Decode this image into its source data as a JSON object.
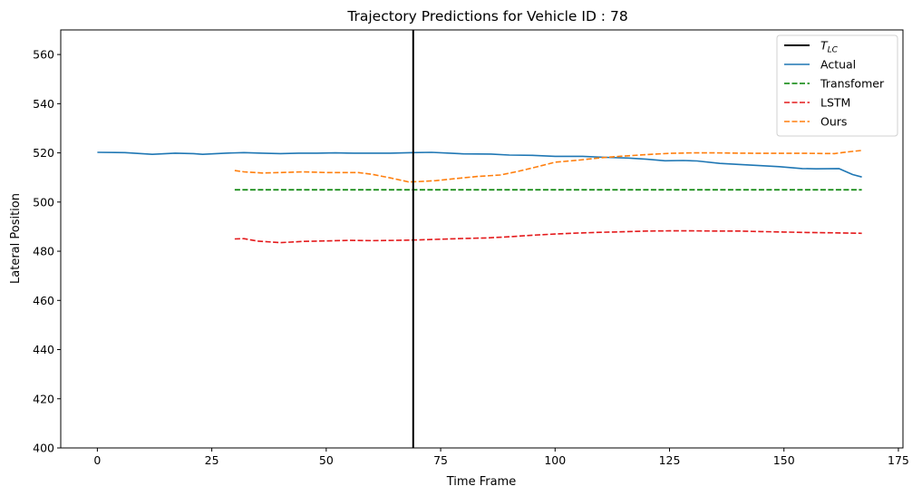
{
  "chart_data": {
    "type": "line",
    "title": "Trajectory Predictions for Vehicle ID : 78",
    "xlabel": "Time Frame",
    "ylabel": "Lateral Position",
    "xlim": [
      -8,
      176
    ],
    "ylim": [
      400,
      570
    ],
    "xticks": [
      0,
      25,
      50,
      75,
      100,
      125,
      150,
      175
    ],
    "yticks": [
      400,
      420,
      440,
      460,
      480,
      500,
      520,
      540,
      560
    ],
    "grid": false,
    "legend_position": "top-right",
    "vline": {
      "name": "T_LC",
      "x": 69,
      "color": "#000000"
    },
    "series": [
      {
        "name": "Actual",
        "color": "#1f77b4",
        "style": "solid",
        "points": [
          [
            0,
            520.2
          ],
          [
            6,
            520.1
          ],
          [
            12,
            519.4
          ],
          [
            14,
            519.6
          ],
          [
            17,
            519.9
          ],
          [
            21,
            519.7
          ],
          [
            23,
            519.4
          ],
          [
            28,
            519.9
          ],
          [
            32,
            520.1
          ],
          [
            36,
            519.9
          ],
          [
            40,
            519.7
          ],
          [
            44,
            519.9
          ],
          [
            48,
            519.9
          ],
          [
            52,
            520.0
          ],
          [
            56,
            519.9
          ],
          [
            60,
            519.9
          ],
          [
            64,
            519.9
          ],
          [
            69,
            520.1
          ],
          [
            73,
            520.2
          ],
          [
            77,
            519.9
          ],
          [
            80,
            519.6
          ],
          [
            86,
            519.5
          ],
          [
            90,
            519.1
          ],
          [
            95,
            519.0
          ],
          [
            100,
            518.6
          ],
          [
            106,
            518.6
          ],
          [
            111,
            518.2
          ],
          [
            116,
            517.9
          ],
          [
            120,
            517.4
          ],
          [
            124,
            516.8
          ],
          [
            128,
            516.9
          ],
          [
            131,
            516.7
          ],
          [
            136,
            515.7
          ],
          [
            140,
            515.3
          ],
          [
            145,
            514.8
          ],
          [
            149,
            514.4
          ],
          [
            154,
            513.6
          ],
          [
            157,
            513.5
          ],
          [
            162,
            513.6
          ],
          [
            165,
            511.2
          ],
          [
            167,
            510.2
          ]
        ]
      },
      {
        "name": "Transfomer",
        "color": "#008000",
        "style": "dashed",
        "points": [
          [
            30,
            505.0
          ],
          [
            167,
            505.0
          ]
        ]
      },
      {
        "name": "LSTM",
        "color": "#e41a1c",
        "style": "dashed",
        "points": [
          [
            30,
            485.0
          ],
          [
            32,
            485.1
          ],
          [
            35,
            484.1
          ],
          [
            40,
            483.5
          ],
          [
            45,
            484.0
          ],
          [
            50,
            484.2
          ],
          [
            55,
            484.4
          ],
          [
            60,
            484.3
          ],
          [
            65,
            484.4
          ],
          [
            70,
            484.6
          ],
          [
            75,
            484.9
          ],
          [
            80,
            485.2
          ],
          [
            85,
            485.4
          ],
          [
            90,
            485.9
          ],
          [
            95,
            486.5
          ],
          [
            100,
            487.0
          ],
          [
            105,
            487.4
          ],
          [
            110,
            487.7
          ],
          [
            115,
            487.9
          ],
          [
            120,
            488.2
          ],
          [
            125,
            488.3
          ],
          [
            130,
            488.3
          ],
          [
            135,
            488.2
          ],
          [
            140,
            488.2
          ],
          [
            145,
            488.0
          ],
          [
            150,
            487.8
          ],
          [
            155,
            487.6
          ],
          [
            160,
            487.5
          ],
          [
            167,
            487.3
          ]
        ]
      },
      {
        "name": "Ours",
        "color": "#ff7f0e",
        "style": "dashed",
        "points": [
          [
            30,
            512.8
          ],
          [
            32,
            512.3
          ],
          [
            36,
            511.8
          ],
          [
            40,
            512.0
          ],
          [
            45,
            512.3
          ],
          [
            50,
            512.0
          ],
          [
            57,
            512.0
          ],
          [
            60,
            511.3
          ],
          [
            64,
            509.8
          ],
          [
            68,
            508.2
          ],
          [
            70,
            508.3
          ],
          [
            74,
            508.7
          ],
          [
            78,
            509.5
          ],
          [
            83,
            510.4
          ],
          [
            88,
            511.0
          ],
          [
            92,
            512.5
          ],
          [
            96,
            514.3
          ],
          [
            100,
            516.2
          ],
          [
            105,
            517.0
          ],
          [
            110,
            518.0
          ],
          [
            115,
            518.7
          ],
          [
            120,
            519.3
          ],
          [
            125,
            519.8
          ],
          [
            130,
            520.0
          ],
          [
            135,
            520.0
          ],
          [
            140,
            519.9
          ],
          [
            145,
            519.8
          ],
          [
            150,
            519.8
          ],
          [
            155,
            519.8
          ],
          [
            161,
            519.7
          ],
          [
            164,
            520.4
          ],
          [
            167,
            521.0
          ]
        ]
      }
    ]
  }
}
